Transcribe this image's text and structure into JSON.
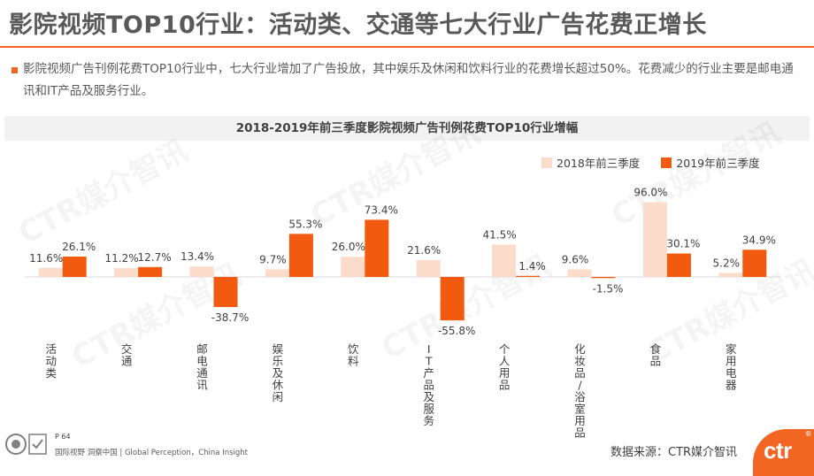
{
  "page": {
    "title": "影院视频TOP10行业：活动类、交通等七大行业广告花费正增长",
    "intro": "影院视频广告刊例花费TOP10行业中，七大行业增加了广告投放，其中娱乐及休闲和饮料行业的花费增长超过50%。花费减少的行业主要是邮电通讯和IT产品及服务行业。"
  },
  "chart_data": {
    "type": "bar",
    "title": "2018-2019年前三季度影院视频广告刊例花费TOP10行业增幅",
    "categories": [
      "活动类",
      "交通",
      "邮电通讯",
      "娱乐及休闲",
      "饮料",
      "IT产品及服务",
      "个人用品",
      "化妆品/浴室用品",
      "食品",
      "家用电器"
    ],
    "series": [
      {
        "name": "2018年前三季度",
        "color": "#fbdccb",
        "values": [
          11.6,
          11.2,
          13.4,
          9.7,
          26.0,
          21.6,
          41.5,
          9.6,
          96.0,
          5.2
        ],
        "labels": [
          "11.6%",
          "11.2%",
          "13.4%",
          "9.7%",
          "26.0%",
          "21.6%",
          "41.5%",
          "9.6%",
          "96.0%",
          "5.2%"
        ]
      },
      {
        "name": "2019年前三季度",
        "color": "#f15a0f",
        "values": [
          26.1,
          12.7,
          -38.7,
          55.3,
          73.4,
          -55.8,
          1.4,
          -1.5,
          30.1,
          34.9
        ],
        "labels": [
          "26.1%",
          "12.7%",
          "-38.7%",
          "55.3%",
          "73.4%",
          "-55.8%",
          "1.4%",
          "-1.5%",
          "30.1%",
          "34.9%"
        ]
      }
    ],
    "xlabel": "",
    "ylabel": "",
    "ylim": [
      -60,
      100
    ],
    "legend": "top-right",
    "grid": false
  },
  "footer": {
    "page_number": "P 64",
    "tagline": "国际视野 洞察中国 | Global Perception，China Insight",
    "source": "数据来源：CTR媒介智讯",
    "logo": "ctr",
    "logo_mark": "®",
    "watermark": "CTR媒介智讯"
  },
  "colors": {
    "accent": "#f26522",
    "title": "#595959",
    "header_band": "#f2f2f2"
  }
}
